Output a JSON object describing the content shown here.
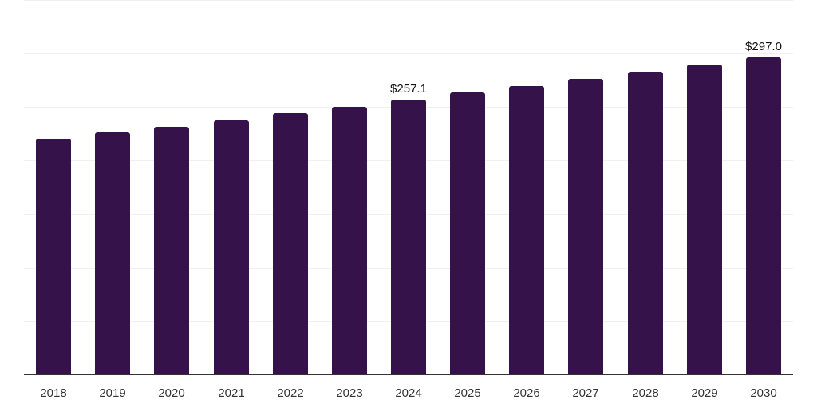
{
  "chart_data": {
    "type": "bar",
    "title": "",
    "xlabel": "",
    "ylabel": "",
    "categories": [
      "2018",
      "2019",
      "2020",
      "2021",
      "2022",
      "2023",
      "2024",
      "2025",
      "2026",
      "2027",
      "2028",
      "2029",
      "2030"
    ],
    "values": [
      220.9,
      226.9,
      232.1,
      238.0,
      244.8,
      250.7,
      257.1,
      264.2,
      270.1,
      276.9,
      283.6,
      290.3,
      297.0
    ],
    "data_labels": [
      {
        "category": "2024",
        "text": "$257.1"
      },
      {
        "category": "2030",
        "text": "$297.0"
      }
    ],
    "ylim": [
      0,
      350
    ],
    "yticks": [
      0,
      50,
      100,
      150,
      200,
      250,
      300,
      350
    ],
    "grid": true,
    "legend": null,
    "bar_color": "#36124a",
    "axis_color": "#333333",
    "grid_color": "#f0f0f0"
  }
}
